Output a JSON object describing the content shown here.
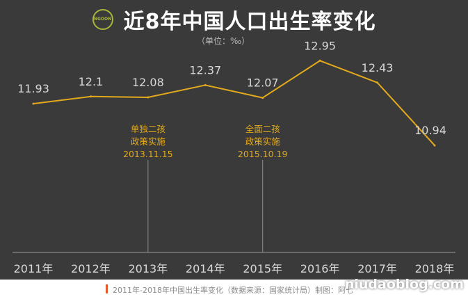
{
  "page": {
    "title": "近8年中国人口出生率变化",
    "logo_text": "NGOON",
    "unit": "（单位：‰）",
    "footer": "2011年-2018年中国出生率变化（数据来源：国家统计局）制图：阿七",
    "watermark": "niudaoblog.com"
  },
  "colors": {
    "background": "#3a3a3a",
    "line": "#e3aa1c",
    "annotation": "#e3aa1c",
    "label": "#d9d9d9",
    "axis": "#9a9a9a",
    "footer_bar": "#e05a2b",
    "logo": "#a9b53a"
  },
  "chart_data": {
    "type": "line",
    "title": "近8年中国人口出生率变化",
    "unit": "（单位：‰）",
    "categories": [
      "2011年",
      "2012年",
      "2013年",
      "2014年",
      "2015年",
      "2016年",
      "2017年",
      "2018年"
    ],
    "values": [
      11.93,
      12.1,
      12.08,
      12.37,
      12.07,
      12.95,
      12.43,
      10.94
    ],
    "value_labels": [
      "11.93",
      "12.1",
      "12.08",
      "12.37",
      "12.07",
      "12.95",
      "12.43",
      "10.94"
    ],
    "ylim": [
      8.4,
      13.4
    ],
    "grid": false,
    "annotations": [
      {
        "category": "2013年",
        "lines": [
          "单独二孩",
          "政策实施",
          "2013.11.15"
        ]
      },
      {
        "category": "2015年",
        "lines": [
          "全面二孩",
          "政策实施",
          "2015.10.19"
        ]
      }
    ]
  }
}
